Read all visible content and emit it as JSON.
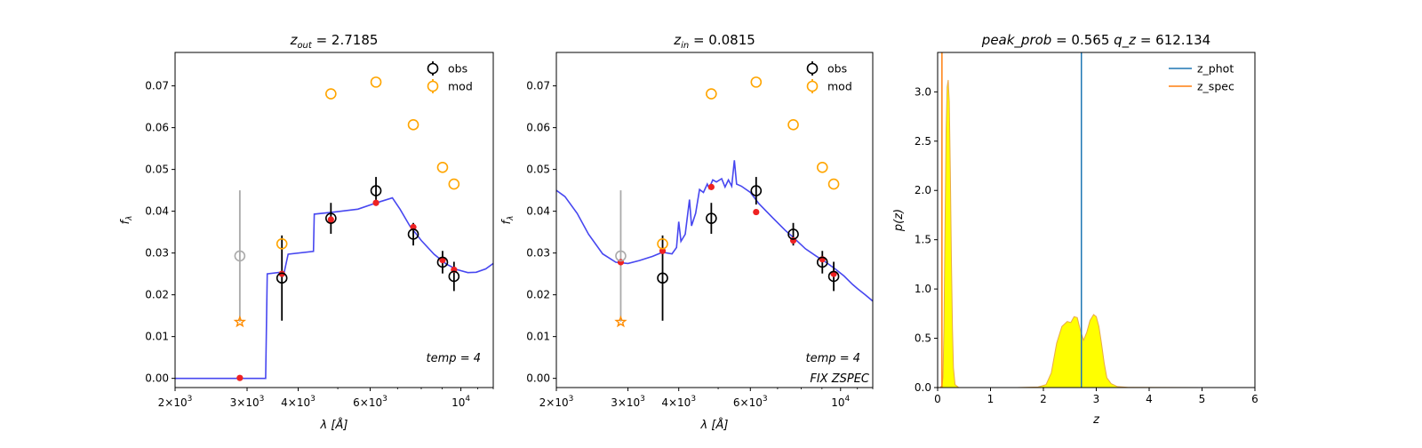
{
  "chart_data": [
    {
      "type": "scatter",
      "title": "z_out = 2.7185",
      "title_prefix": "z",
      "title_sub": "out",
      "title_value": "= 2.7185",
      "xlabel_main": "λ [",
      "xlabel_unit": "Å",
      "xlabel_end": "]",
      "ylabel": "f",
      "ylabel_sub": "λ",
      "x_scale": "log",
      "xlim": [
        2000,
        12000
      ],
      "ylim": [
        -0.0022,
        0.078
      ],
      "x_ticks": [
        {
          "v": 2000,
          "m": "2",
          "e": "3"
        },
        {
          "v": 3000,
          "m": "3",
          "e": "3"
        },
        {
          "v": 4000,
          "m": "4",
          "e": "3"
        },
        {
          "v": 6000,
          "m": "6",
          "e": "3"
        },
        {
          "v": 10000,
          "m": "",
          "e": "4"
        }
      ],
      "y_ticks": [
        "0.00",
        "0.01",
        "0.02",
        "0.03",
        "0.04",
        "0.05",
        "0.06",
        "0.07"
      ],
      "y_tick_values": [
        0,
        0.01,
        0.02,
        0.03,
        0.04,
        0.05,
        0.06,
        0.07
      ],
      "legend": [
        {
          "label": "obs",
          "color": "#000000"
        },
        {
          "label": "mod",
          "color": "#ffa500"
        }
      ],
      "legend_position": "top-right",
      "annotation": "temp = 4",
      "annotation2": "",
      "series": [
        {
          "name": "obs",
          "color": "#000000",
          "points": [
            [
              3650,
              0.024,
              0.0102
            ],
            [
              4810,
              0.0383,
              0.0037
            ],
            [
              6200,
              0.0449,
              0.0033
            ],
            [
              7650,
              0.0345,
              0.0027
            ],
            [
              9020,
              0.0278,
              0.0027
            ],
            [
              9620,
              0.0244,
              0.0035
            ]
          ]
        },
        {
          "name": "obs_faded",
          "color": "#aaaaaa",
          "points": [
            [
              2880,
              0.0293,
              0.0157
            ]
          ]
        },
        {
          "name": "mod",
          "color": "#ffa500",
          "points": [
            [
              3650,
              0.0322
            ],
            [
              4810,
              0.0681
            ],
            [
              6200,
              0.0709
            ],
            [
              7650,
              0.0607
            ],
            [
              9020,
              0.0505
            ],
            [
              9620,
              0.0465
            ]
          ]
        },
        {
          "name": "model_phot",
          "color": "#ee2222",
          "points": [
            [
              2880,
              0.0001
            ],
            [
              3650,
              0.025
            ],
            [
              4810,
              0.038
            ],
            [
              6200,
              0.042
            ],
            [
              7650,
              0.0362
            ],
            [
              9020,
              0.0283
            ],
            [
              9620,
              0.026
            ]
          ]
        },
        {
          "name": "star",
          "color": "#ff8c00",
          "points": [
            [
              2880,
              0.0135
            ]
          ]
        },
        {
          "name": "template",
          "color": "#3333ee",
          "line": [
            [
              2000,
              0.0
            ],
            [
              3330,
              0.0
            ],
            [
              3360,
              0.025
            ],
            [
              3700,
              0.0255
            ],
            [
              3780,
              0.0297
            ],
            [
              4360,
              0.0304
            ],
            [
              4380,
              0.0393
            ],
            [
              4900,
              0.0398
            ],
            [
              5600,
              0.0405
            ],
            [
              6300,
              0.0422
            ],
            [
              6800,
              0.0432
            ],
            [
              7100,
              0.0405
            ],
            [
              7500,
              0.0365
            ],
            [
              8000,
              0.033
            ],
            [
              8600,
              0.0297
            ],
            [
              9200,
              0.0274
            ],
            [
              9800,
              0.026
            ],
            [
              10400,
              0.0253
            ],
            [
              10900,
              0.0254
            ],
            [
              11500,
              0.0262
            ],
            [
              12000,
              0.0275
            ]
          ]
        }
      ]
    },
    {
      "type": "scatter",
      "title": "z_in = 0.0815",
      "title_prefix": "z",
      "title_sub": "in",
      "title_value": "= 0.0815",
      "xlabel_main": "λ [",
      "xlabel_unit": "Å",
      "xlabel_end": "]",
      "ylabel": "f",
      "ylabel_sub": "λ",
      "x_scale": "log",
      "xlim": [
        2000,
        12000
      ],
      "ylim": [
        -0.0022,
        0.078
      ],
      "x_ticks": [
        {
          "v": 2000,
          "m": "2",
          "e": "3"
        },
        {
          "v": 3000,
          "m": "3",
          "e": "3"
        },
        {
          "v": 4000,
          "m": "4",
          "e": "3"
        },
        {
          "v": 6000,
          "m": "6",
          "e": "3"
        },
        {
          "v": 10000,
          "m": "",
          "e": "4"
        }
      ],
      "y_ticks": [
        "0.00",
        "0.01",
        "0.02",
        "0.03",
        "0.04",
        "0.05",
        "0.06",
        "0.07"
      ],
      "y_tick_values": [
        0,
        0.01,
        0.02,
        0.03,
        0.04,
        0.05,
        0.06,
        0.07
      ],
      "legend": [
        {
          "label": "obs",
          "color": "#000000"
        },
        {
          "label": "mod",
          "color": "#ffa500"
        }
      ],
      "legend_position": "top-right",
      "annotation": "temp = 4",
      "annotation2": "FIX ZSPEC",
      "series": [
        {
          "name": "obs",
          "color": "#000000",
          "points": [
            [
              3650,
              0.024,
              0.0102
            ],
            [
              4810,
              0.0383,
              0.0037
            ],
            [
              6200,
              0.0449,
              0.0033
            ],
            [
              7650,
              0.0345,
              0.0027
            ],
            [
              9020,
              0.0278,
              0.0027
            ],
            [
              9620,
              0.0244,
              0.0035
            ]
          ]
        },
        {
          "name": "obs_faded",
          "color": "#aaaaaa",
          "points": [
            [
              2880,
              0.0293,
              0.0157
            ]
          ]
        },
        {
          "name": "mod",
          "color": "#ffa500",
          "points": [
            [
              3650,
              0.0322
            ],
            [
              4810,
              0.0681
            ],
            [
              6200,
              0.0709
            ],
            [
              7650,
              0.0607
            ],
            [
              9020,
              0.0505
            ],
            [
              9620,
              0.0465
            ]
          ]
        },
        {
          "name": "model_phot",
          "color": "#ee2222",
          "points": [
            [
              2880,
              0.0278
            ],
            [
              3650,
              0.0305
            ],
            [
              4810,
              0.0458
            ],
            [
              6200,
              0.0398
            ],
            [
              7650,
              0.033
            ],
            [
              9020,
              0.0285
            ],
            [
              9620,
              0.025
            ]
          ]
        },
        {
          "name": "star",
          "color": "#ff8c00",
          "points": [
            [
              2880,
              0.0135
            ]
          ]
        },
        {
          "name": "template",
          "color": "#3333ee",
          "line": [
            [
              2000,
              0.045
            ],
            [
              2100,
              0.0435
            ],
            [
              2250,
              0.0395
            ],
            [
              2400,
              0.0345
            ],
            [
              2600,
              0.0298
            ],
            [
              2800,
              0.0278
            ],
            [
              3000,
              0.0275
            ],
            [
              3200,
              0.0282
            ],
            [
              3450,
              0.0292
            ],
            [
              3650,
              0.0302
            ],
            [
              3850,
              0.0298
            ],
            [
              3950,
              0.0313
            ],
            [
              4000,
              0.0375
            ],
            [
              4050,
              0.0328
            ],
            [
              4150,
              0.0345
            ],
            [
              4250,
              0.0428
            ],
            [
              4300,
              0.0365
            ],
            [
              4400,
              0.0395
            ],
            [
              4500,
              0.0452
            ],
            [
              4600,
              0.0445
            ],
            [
              4700,
              0.0465
            ],
            [
              4750,
              0.0455
            ],
            [
              4850,
              0.0475
            ],
            [
              4950,
              0.047
            ],
            [
              5100,
              0.0478
            ],
            [
              5200,
              0.0458
            ],
            [
              5300,
              0.0475
            ],
            [
              5400,
              0.046
            ],
            [
              5480,
              0.0522
            ],
            [
              5550,
              0.0465
            ],
            [
              5700,
              0.046
            ],
            [
              6000,
              0.0445
            ],
            [
              6300,
              0.0418
            ],
            [
              6800,
              0.0385
            ],
            [
              7300,
              0.0355
            ],
            [
              7700,
              0.0335
            ],
            [
              8200,
              0.031
            ],
            [
              8700,
              0.0293
            ],
            [
              9200,
              0.0278
            ],
            [
              9700,
              0.0262
            ],
            [
              10200,
              0.0245
            ],
            [
              10700,
              0.0225
            ],
            [
              11000,
              0.0215
            ],
            [
              11500,
              0.02
            ],
            [
              12000,
              0.0185
            ]
          ]
        }
      ]
    },
    {
      "type": "area",
      "title": "peak_prob = 0.565      q_z = 612.134",
      "title_left": "peak_prob",
      "title_left_value": "= 0.565",
      "title_right": "q_z",
      "title_right_value": "= 612.134",
      "xlabel": "z",
      "ylabel": "p(z)",
      "xlim": [
        0,
        6
      ],
      "ylim": [
        0,
        3.4
      ],
      "x_ticks": [
        "0",
        "1",
        "2",
        "3",
        "4",
        "5",
        "6"
      ],
      "x_tick_values": [
        0,
        1,
        2,
        3,
        4,
        5,
        6
      ],
      "y_ticks": [
        "0.0",
        "0.5",
        "1.0",
        "1.5",
        "2.0",
        "2.5",
        "3.0"
      ],
      "y_tick_values": [
        0,
        0.5,
        1.0,
        1.5,
        2.0,
        2.5,
        3.0
      ],
      "legend": [
        {
          "label": "z_phot",
          "color": "#1f77b4"
        },
        {
          "label": "z_spec",
          "color": "#ff7f0e"
        }
      ],
      "legend_position": "top-right",
      "z_phot": 2.7185,
      "z_spec": 0.0815,
      "fill_color": "#ffff00",
      "edge_color": "#e8a94a",
      "pz": [
        [
          0,
          0
        ],
        [
          0.05,
          0.002
        ],
        [
          0.08,
          0.02
        ],
        [
          0.1,
          0.1
        ],
        [
          0.12,
          0.6
        ],
        [
          0.14,
          1.6
        ],
        [
          0.16,
          2.6
        ],
        [
          0.18,
          3.05
        ],
        [
          0.2,
          3.12
        ],
        [
          0.22,
          2.9
        ],
        [
          0.24,
          2.2
        ],
        [
          0.26,
          1.3
        ],
        [
          0.28,
          0.6
        ],
        [
          0.3,
          0.2
        ],
        [
          0.33,
          0.03
        ],
        [
          0.4,
          0.0
        ],
        [
          1.5,
          0.0
        ],
        [
          1.9,
          0.005
        ],
        [
          2.05,
          0.03
        ],
        [
          2.15,
          0.15
        ],
        [
          2.25,
          0.45
        ],
        [
          2.35,
          0.62
        ],
        [
          2.45,
          0.67
        ],
        [
          2.52,
          0.66
        ],
        [
          2.58,
          0.72
        ],
        [
          2.64,
          0.71
        ],
        [
          2.7,
          0.58
        ],
        [
          2.76,
          0.48
        ],
        [
          2.82,
          0.56
        ],
        [
          2.88,
          0.68
        ],
        [
          2.95,
          0.74
        ],
        [
          3.0,
          0.72
        ],
        [
          3.05,
          0.62
        ],
        [
          3.1,
          0.44
        ],
        [
          3.15,
          0.25
        ],
        [
          3.2,
          0.1
        ],
        [
          3.28,
          0.04
        ],
        [
          3.4,
          0.01
        ],
        [
          3.6,
          0.002
        ],
        [
          5.0,
          0.0
        ]
      ]
    }
  ]
}
